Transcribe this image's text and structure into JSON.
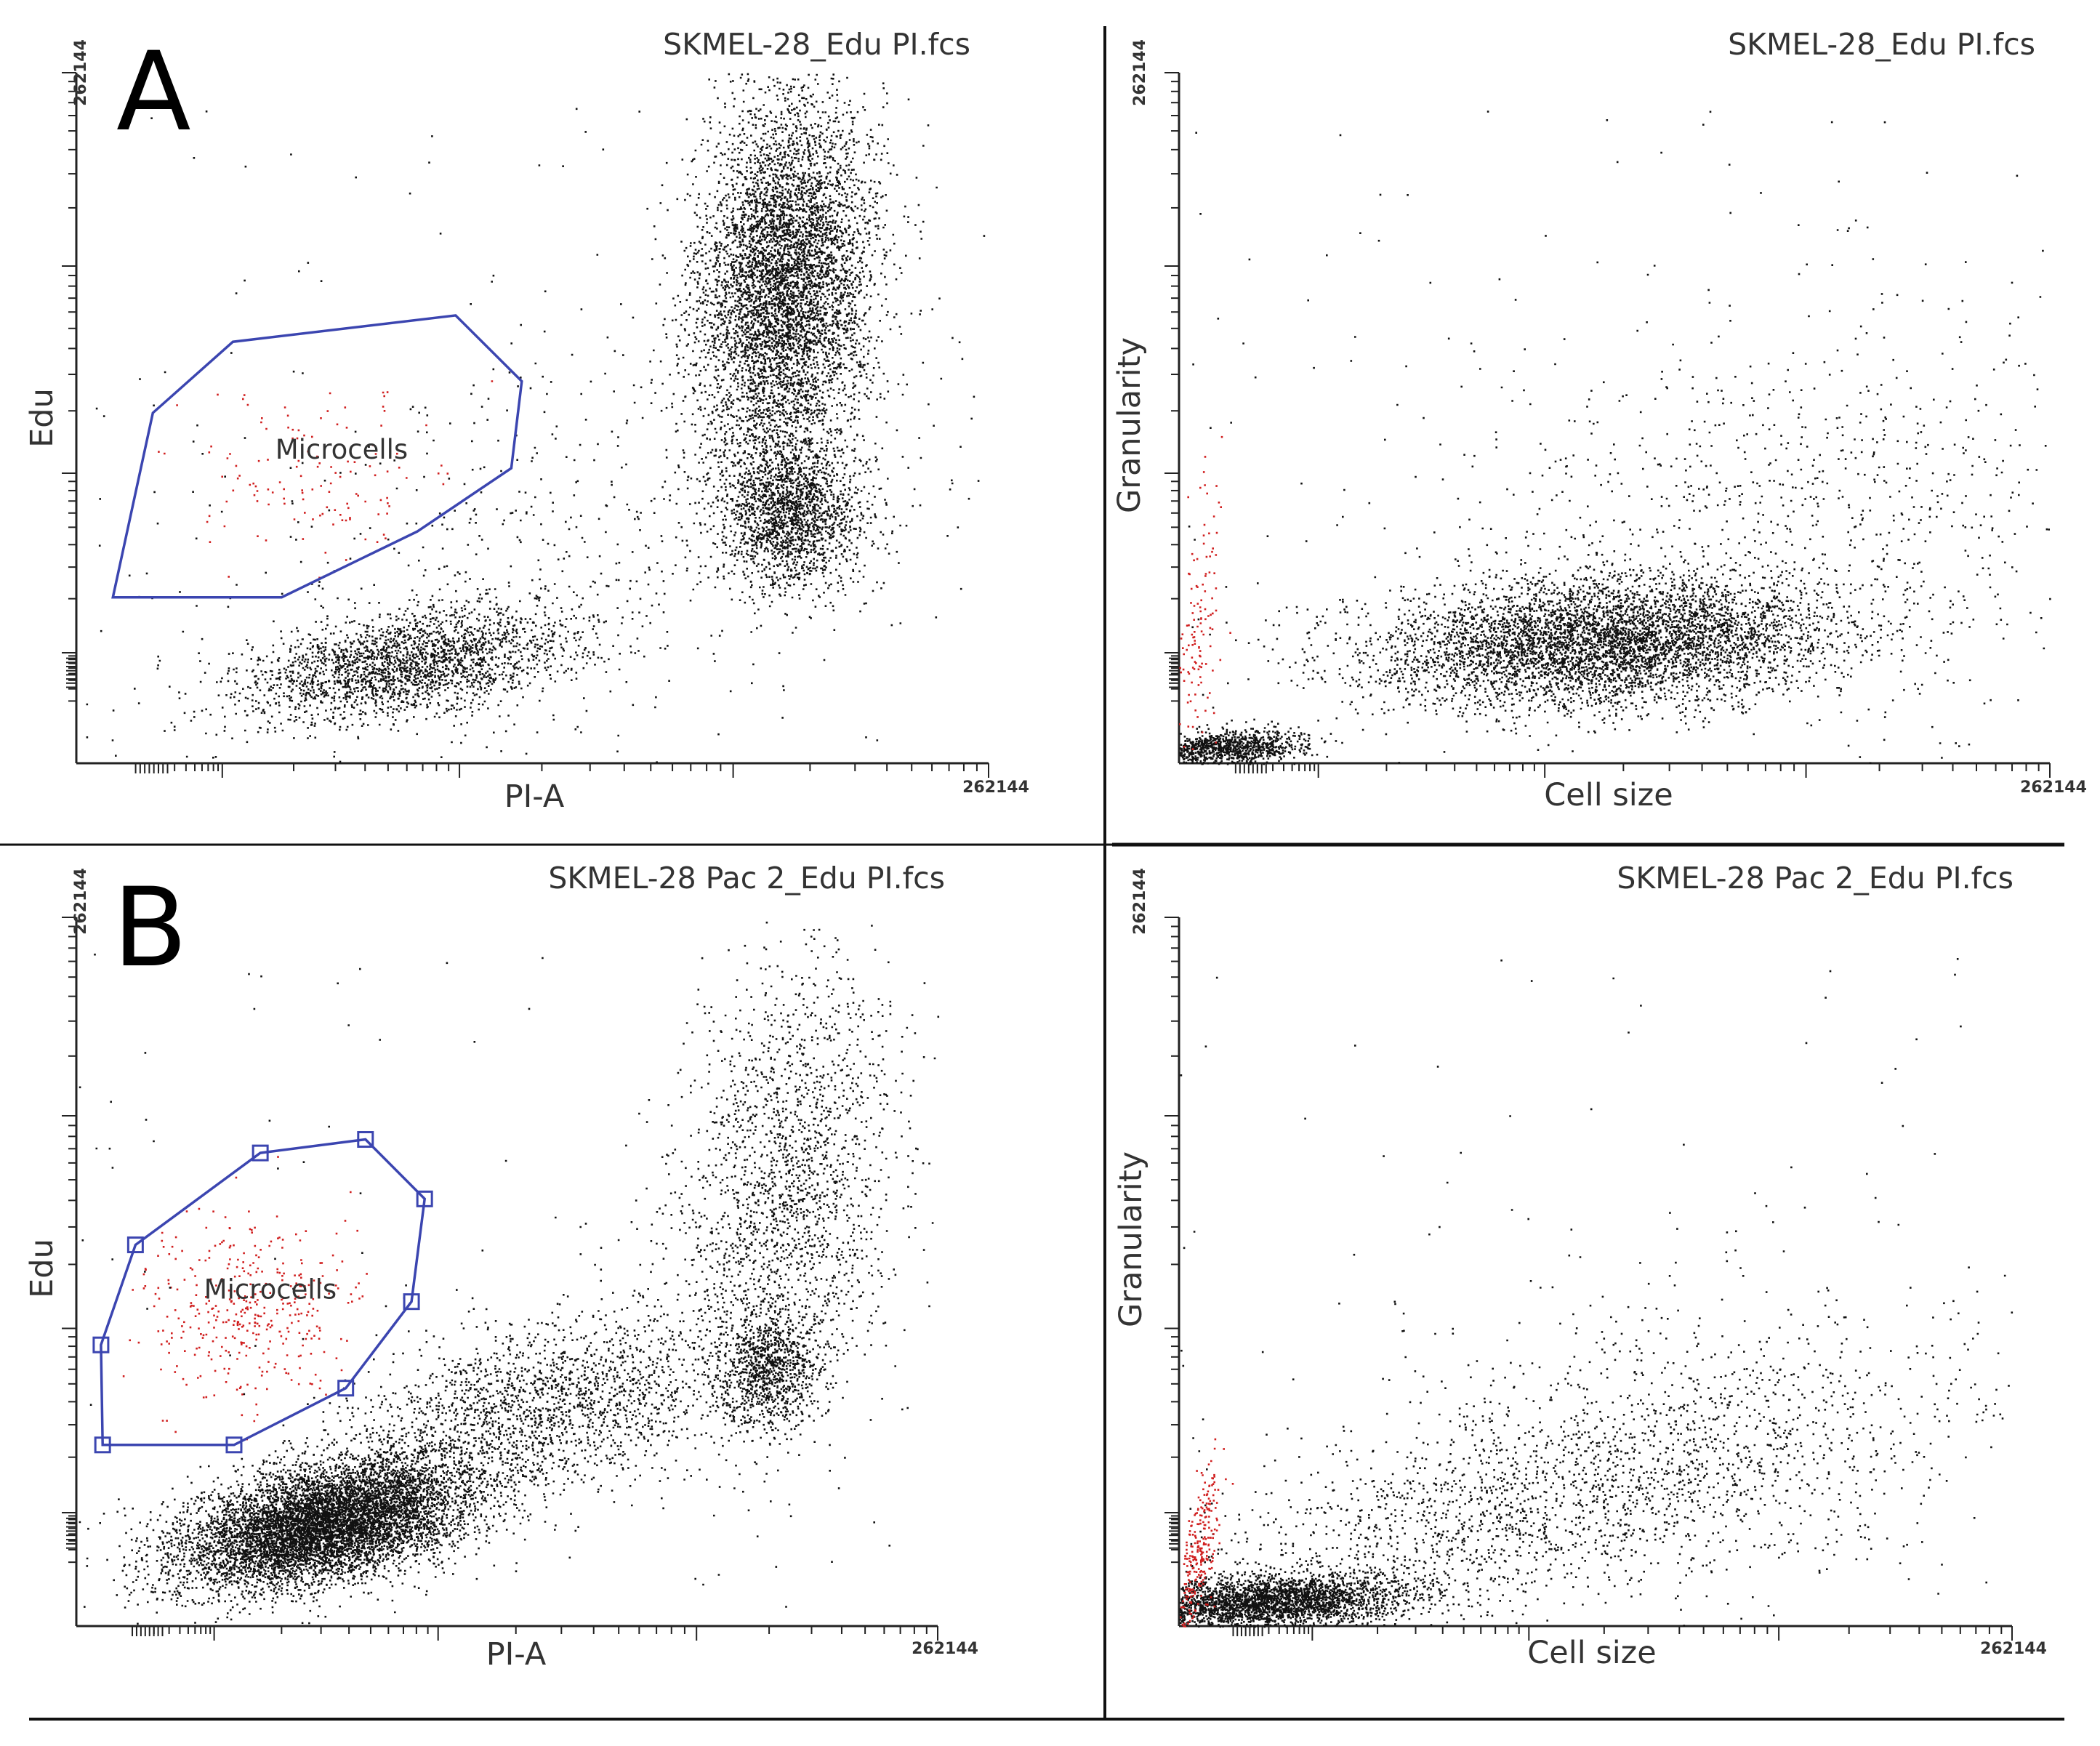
{
  "figure": {
    "rows": [
      {
        "letter": "A",
        "file": "SKMEL-28_Edu PI.fcs"
      },
      {
        "letter": "B",
        "file": "SKMEL-28 Pac 2_Edu PI.fcs"
      }
    ]
  },
  "colors": {
    "dots": "#111111",
    "gated_dots": "#d01f1f",
    "gate": "#3b45b0",
    "axis": "#222222",
    "divider": "#111111"
  },
  "chart_data": [
    {
      "id": "A-left",
      "type": "scatter",
      "row": "A",
      "title": "SKMEL-28_Edu PI.fcs",
      "xlabel": "PI-A",
      "ylabel": "Edu",
      "xlim": [
        0,
        262144
      ],
      "ylim": [
        0,
        262144
      ],
      "x_max_label": "262144",
      "y_max_label": "262144",
      "gate": {
        "name": "Microcells",
        "handles": false,
        "vertices": [
          [
            10500,
            63000
          ],
          [
            59000,
            63000
          ],
          [
            98000,
            88000
          ],
          [
            125000,
            112000
          ],
          [
            128000,
            145000
          ],
          [
            109000,
            170000
          ],
          [
            45000,
            160000
          ],
          [
            22000,
            133000
          ]
        ]
      },
      "populations": [
        {
          "n": 2300,
          "cx": 95000,
          "cy": 38000,
          "sx": 24000,
          "sy": 11000,
          "rho": 0.45,
          "color": "dots"
        },
        {
          "n": 5800,
          "cx": 203000,
          "cy": 181000,
          "sx": 12500,
          "sy": 36000,
          "rho": 0.15,
          "color": "dots"
        },
        {
          "n": 1800,
          "cx": 205000,
          "cy": 95000,
          "sx": 10500,
          "sy": 14000,
          "rho": 0.0,
          "color": "dots"
        },
        {
          "n": 600,
          "cx": 150000,
          "cy": 90000,
          "sx": 65000,
          "sy": 45000,
          "rho": 0.5,
          "color": "dots"
        },
        {
          "n": 130,
          "cx": 68000,
          "cy": 110000,
          "sx": 22000,
          "sy": 20000,
          "rho": 0.0,
          "color": "gated_dots",
          "in_gate": true
        }
      ]
    },
    {
      "id": "A-right",
      "type": "scatter",
      "row": "A",
      "title": "SKMEL-28_Edu PI.fcs",
      "xlabel": "Cell size",
      "ylabel": "Granularity",
      "xlim": [
        0,
        262144
      ],
      "ylim": [
        0,
        262144
      ],
      "x_max_label": "262144",
      "y_max_label": "262144",
      "populations": [
        {
          "n": 900,
          "cx": 14000,
          "cy": 6000,
          "sx": 12000,
          "sy": 3500,
          "rho": 0.3,
          "color": "dots"
        },
        {
          "n": 5200,
          "cx": 128000,
          "cy": 46000,
          "sx": 35000,
          "sy": 12000,
          "rho": 0.15,
          "color": "dots"
        },
        {
          "n": 900,
          "cx": 180000,
          "cy": 90000,
          "sx": 50000,
          "sy": 40000,
          "rho": 0.2,
          "color": "dots"
        },
        {
          "n": 120,
          "cx": 6000,
          "cy": 50000,
          "sx": 4000,
          "sy": 30000,
          "rho": 0.5,
          "color": "gated_dots"
        }
      ]
    },
    {
      "id": "B-left",
      "type": "scatter",
      "row": "B",
      "title": "SKMEL-28 Pac 2_Edu PI.fcs",
      "xlabel": "PI-A",
      "ylabel": "Edu",
      "xlim": [
        0,
        262144
      ],
      "ylim": [
        0,
        262144
      ],
      "x_max_label": "262144",
      "y_max_label": "262144",
      "gate": {
        "name": "Microcells",
        "handles": true,
        "vertices": [
          [
            8000,
            67000
          ],
          [
            48000,
            67000
          ],
          [
            82000,
            88000
          ],
          [
            102000,
            120000
          ],
          [
            106000,
            158000
          ],
          [
            88000,
            180000
          ],
          [
            56000,
            175000
          ],
          [
            18000,
            141000
          ],
          [
            7500,
            104000
          ]
        ]
      },
      "populations": [
        {
          "n": 7600,
          "cx": 75000,
          "cy": 38000,
          "sx": 22000,
          "sy": 12000,
          "rho": 0.45,
          "color": "dots"
        },
        {
          "n": 2000,
          "cx": 140000,
          "cy": 80000,
          "sx": 30000,
          "sy": 18000,
          "rho": 0.4,
          "color": "dots"
        },
        {
          "n": 900,
          "cx": 210000,
          "cy": 95000,
          "sx": 8000,
          "sy": 10000,
          "rho": 0.0,
          "color": "dots"
        },
        {
          "n": 2000,
          "cx": 215000,
          "cy": 160000,
          "sx": 17000,
          "sy": 42000,
          "rho": 0.2,
          "color": "dots"
        },
        {
          "n": 380,
          "cx": 52000,
          "cy": 115000,
          "sx": 16000,
          "sy": 18000,
          "rho": 0.0,
          "color": "gated_dots",
          "in_gate": true
        }
      ]
    },
    {
      "id": "B-right",
      "type": "scatter",
      "row": "B",
      "title": "SKMEL-28 Pac 2_Edu PI.fcs",
      "xlabel": "Cell size",
      "ylabel": "Granularity",
      "xlim": [
        0,
        262144
      ],
      "ylim": [
        0,
        262144
      ],
      "x_max_label": "262144",
      "y_max_label": "262144",
      "populations": [
        {
          "n": 2600,
          "cx": 28000,
          "cy": 9000,
          "sx": 22000,
          "sy": 5000,
          "rho": 0.3,
          "color": "dots"
        },
        {
          "n": 1700,
          "cx": 110000,
          "cy": 45000,
          "sx": 55000,
          "sy": 24000,
          "rho": 0.6,
          "color": "dots"
        },
        {
          "n": 600,
          "cx": 170000,
          "cy": 70000,
          "sx": 45000,
          "sy": 30000,
          "rho": 0.2,
          "color": "dots"
        },
        {
          "n": 250,
          "cx": 6000,
          "cy": 28000,
          "sx": 3500,
          "sy": 16000,
          "rho": 0.6,
          "color": "gated_dots"
        }
      ]
    }
  ]
}
